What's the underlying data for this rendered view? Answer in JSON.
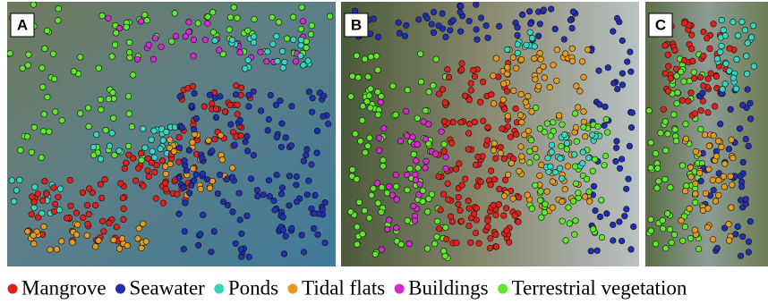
{
  "panels": [
    {
      "label": "A"
    },
    {
      "label": "B"
    },
    {
      "label": "C"
    }
  ],
  "legend": [
    {
      "name": "Mangrove",
      "color": "#e0211b"
    },
    {
      "name": "Seawater",
      "color": "#1f2fb0"
    },
    {
      "name": "Ponds",
      "color": "#35d6c0"
    },
    {
      "name": "Tidal flats",
      "color": "#e39a1e"
    },
    {
      "name": "Buildings",
      "color": "#d62ad0"
    },
    {
      "name": "Terrestrial vegetation",
      "color": "#5ee82a"
    }
  ]
}
